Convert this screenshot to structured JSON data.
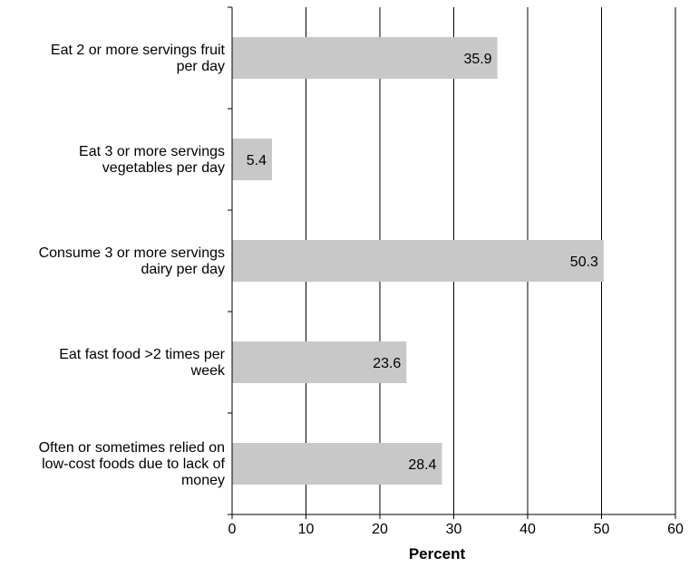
{
  "chart_data": {
    "type": "bar",
    "orientation": "horizontal",
    "categories": [
      [
        "Eat 2 or more servings fruit",
        "per day"
      ],
      [
        "Eat 3 or more servings",
        "vegetables per day"
      ],
      [
        "Consume 3 or more servings",
        "dairy per day"
      ],
      [
        "Eat fast food >2 times per",
        "week"
      ],
      [
        "Often or sometimes relied on",
        "low-cost foods due to lack of",
        "money"
      ]
    ],
    "values": [
      35.9,
      5.4,
      50.3,
      23.6,
      28.4
    ],
    "value_labels": [
      "35.9",
      "5.4",
      "50.3",
      "23.6",
      "28.4"
    ],
    "xlabel": "Percent",
    "xlim": [
      0,
      60
    ],
    "xticks": [
      0,
      10,
      20,
      30,
      40,
      50,
      60
    ],
    "grid": "vertical",
    "colors": {
      "bar": "#c8c8c8",
      "grid": "#000000"
    }
  }
}
